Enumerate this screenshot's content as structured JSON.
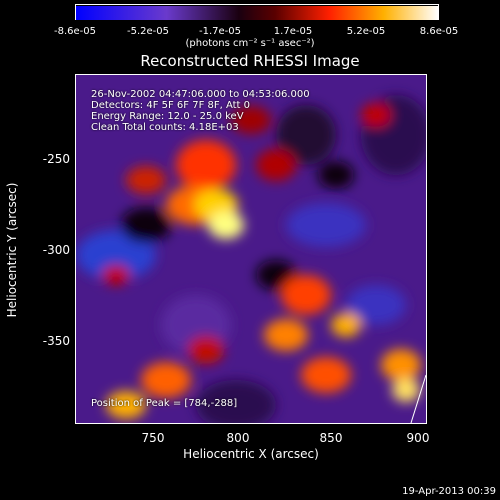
{
  "colorbar": {
    "ticks": [
      "-8.6e-05",
      "-5.2e-05",
      "-1.7e-05",
      "1.7e-05",
      "5.2e-05",
      "8.6e-05"
    ],
    "units": "(photons cm⁻² s⁻¹ asec⁻²)"
  },
  "title": "Reconstructed RHESSI Image",
  "info": {
    "line1": "26-Nov-2002 04:47:06.000 to 04:53:06.000",
    "line2": "Detectors: 4F 5F 6F 7F 8F, Att 0",
    "line3": "Energy Range: 12.0 - 25.0 keV",
    "line4": "Clean    Total counts: 4.18E+03",
    "peak": "Position of Peak = [784,-288]"
  },
  "axes": {
    "xlabel": "Heliocentric X (arcsec)",
    "ylabel": "Heliocentric Y (arcsec)",
    "xticks": [
      "750",
      "800",
      "850",
      "900"
    ],
    "yticks": [
      "-250",
      "-300",
      "-350"
    ]
  },
  "timestamp": "19-Apr-2013 00:39"
}
